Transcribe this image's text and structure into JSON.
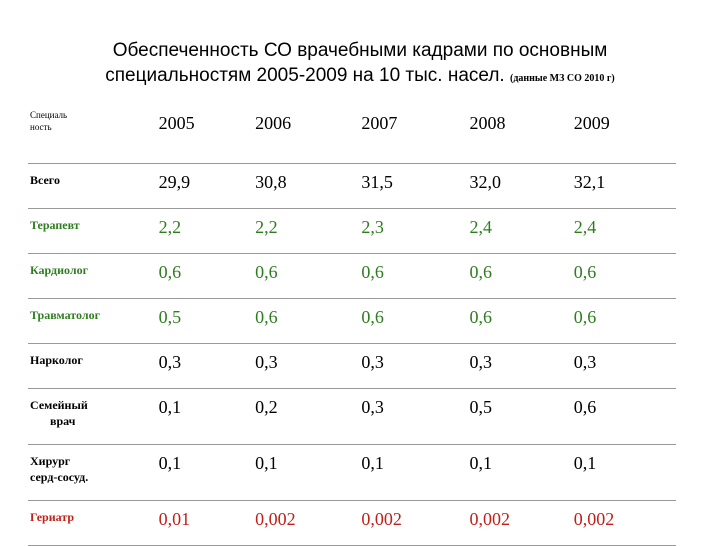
{
  "title": {
    "line1": "Обеспеченность СО врачебными кадрами по основным",
    "line2": "специальностям 2005-2009 на 10 тыс. насел.",
    "source": "(данные МЗ СО 2010 г)"
  },
  "table": {
    "header": {
      "label_line1": "Специаль",
      "label_line2": "ность",
      "years": [
        "2005",
        "2006",
        "2007",
        "2008",
        "2009"
      ]
    },
    "rows": [
      {
        "label": "Всего",
        "values": [
          "29,9",
          "30,8",
          "31,5",
          "32,0",
          "32,1"
        ],
        "color": "#000000"
      },
      {
        "label": "Терапевт",
        "values": [
          "2,2",
          "2,2",
          "2,3",
          "2,4",
          "2,4"
        ],
        "color": "#2e7d1f"
      },
      {
        "label": "Кардиолог",
        "values": [
          "0,6",
          "0,6",
          "0,6",
          "0,6",
          "0,6"
        ],
        "color": "#2e7d1f"
      },
      {
        "label": "Травматолог",
        "values": [
          "0,5",
          "0,6",
          "0,6",
          "0,6",
          "0,6"
        ],
        "color": "#2e7d1f"
      },
      {
        "label": "Нарколог",
        "values": [
          "0,3",
          "0,3",
          "0,3",
          "0,3",
          "0,3"
        ],
        "color": "#000000"
      },
      {
        "label_line1": "Семейный",
        "label_line2": "врач",
        "values": [
          "0,1",
          "0,2",
          "0,3",
          "0,5",
          "0,6"
        ],
        "color": "#000000"
      },
      {
        "label_line1": "Хирург",
        "label_line2": "серд-сосуд.",
        "values": [
          "0,1",
          "0,1",
          "0,1",
          "0,1",
          "0,1"
        ],
        "color": "#000000"
      },
      {
        "label": "Гериатр",
        "values": [
          "0,01",
          "0,002",
          "0,002",
          "0,002",
          "0,002"
        ],
        "color": "#c0201a"
      }
    ]
  }
}
